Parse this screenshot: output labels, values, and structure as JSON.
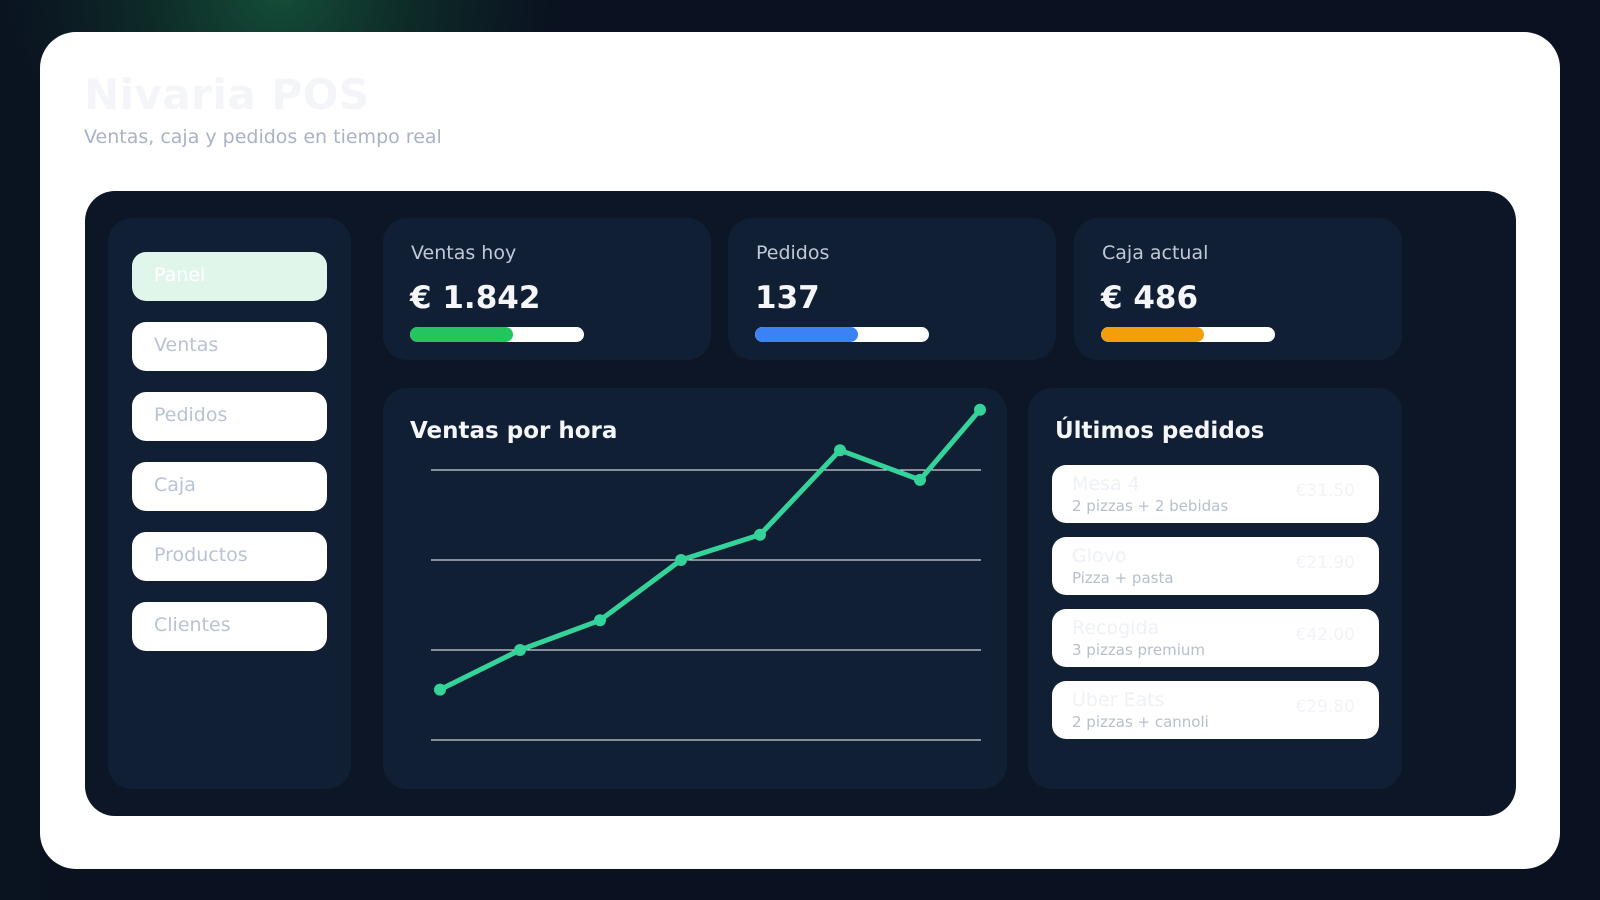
{
  "app": {
    "title": "Nivaria POS",
    "subtitle": "Ventas, caja y pedidos en tiempo real"
  },
  "sidebar": {
    "items": [
      {
        "label": "Panel",
        "active": true
      },
      {
        "label": "Ventas",
        "active": false
      },
      {
        "label": "Pedidos",
        "active": false
      },
      {
        "label": "Caja",
        "active": false
      },
      {
        "label": "Productos",
        "active": false
      },
      {
        "label": "Clientes",
        "active": false
      }
    ]
  },
  "kpis": [
    {
      "label": "Ventas hoy",
      "value": "€ 1.842",
      "progress": 59,
      "color": "#22c55e"
    },
    {
      "label": "Pedidos",
      "value": "137",
      "progress": 59,
      "color": "#3b82f6"
    },
    {
      "label": "Caja actual",
      "value": "€ 486",
      "progress": 59,
      "color": "#f59e0b"
    }
  ],
  "chart": {
    "title": "Ventas por hora",
    "line_color": "#34d399",
    "gridline_color": "#ffffff"
  },
  "chart_data": {
    "type": "line",
    "title": "Ventas por hora",
    "xlabel": "",
    "ylabel": "",
    "x": [
      1,
      2,
      3,
      4,
      5,
      6,
      7,
      8
    ],
    "values": [
      56,
      100,
      133,
      200,
      228,
      322,
      289,
      367
    ],
    "ylim": [
      0,
      300
    ],
    "grid": true,
    "gridlines": [
      0,
      100,
      200,
      300
    ],
    "legend": null,
    "note": "No axis tick labels shown; values are relative (100 units per gridline)."
  },
  "orders": {
    "title": "Últimos pedidos",
    "items": [
      {
        "name": "Mesa 4",
        "desc": "2 pizzas + 2 bebidas",
        "price": "€31.50"
      },
      {
        "name": "Glovo",
        "desc": "Pizza + pasta",
        "price": "€21.90"
      },
      {
        "name": "Recogida",
        "desc": "3 pizzas premium",
        "price": "€42.00"
      },
      {
        "name": "Uber Eats",
        "desc": "2 pizzas + cannoli",
        "price": "€29.80"
      }
    ]
  }
}
